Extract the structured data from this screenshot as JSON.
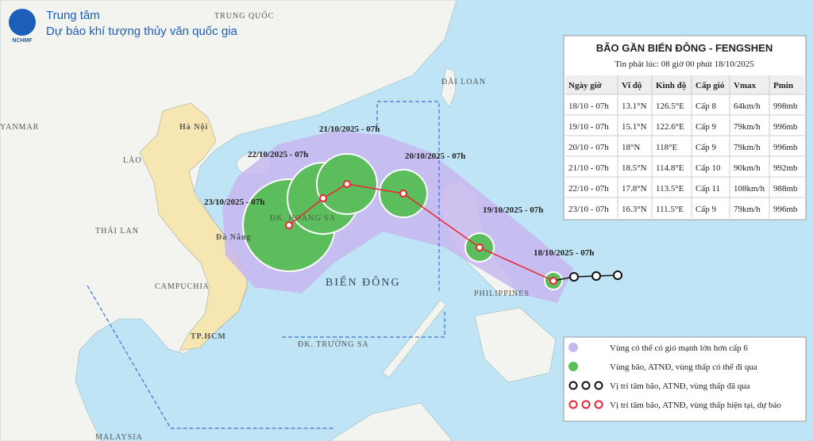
{
  "header": {
    "logo": "NCHMF",
    "line1": "Trung tâm",
    "line2": "Dự báo khí tượng thủy văn quốc gia"
  },
  "map_labels": {
    "china": "TRUNG QUỐC",
    "myanmar": "YANMAR",
    "taiwan": "ĐÀI LOAN",
    "hanoi": "Hà Nội",
    "laos": "LÀO",
    "thailand": "THÁI LAN",
    "danang": "Đà Nẵng",
    "cambodia": "CAMPUCHIA",
    "hcm": "TP.HCM",
    "sea": "BIỂN ĐÔNG",
    "paracel": "ĐK. HOÀNG SA",
    "spratly": "ĐK. TRƯỜNG SA",
    "philippines": "PHILIPPINES",
    "malaysia": "MALAYSIA"
  },
  "track_labels": [
    "18/10/2025 - 07h",
    "19/10/2025 - 07h",
    "20/10/2025 - 07h",
    "21/10/2025 - 07h",
    "22/10/2025 - 07h",
    "23/10/2025 - 07h"
  ],
  "table": {
    "title": "BÃO GẦN BIỂN ĐÔNG - FENGSHEN",
    "subtitle": "Tin phát lúc: 08 giờ 00 phút 18/10/2025",
    "columns": [
      "Ngày giờ",
      "Vĩ độ",
      "Kinh độ",
      "Cấp gió",
      "Vmax",
      "Pmin"
    ],
    "rows": [
      [
        "18/10 - 07h",
        "13.1°N",
        "126.5°E",
        "Cấp 8",
        "64km/h",
        "998mb"
      ],
      [
        "19/10 - 07h",
        "15.1°N",
        "122.6°E",
        "Cấp 9",
        "79km/h",
        "996mb"
      ],
      [
        "20/10 - 07h",
        "18°N",
        "118°E",
        "Cấp 9",
        "79km/h",
        "996mb"
      ],
      [
        "21/10 - 07h",
        "18.5°N",
        "114.8°E",
        "Cấp 10",
        "90km/h",
        "992mb"
      ],
      [
        "22/10 - 07h",
        "17.8°N",
        "113.5°E",
        "Cấp 11",
        "108km/h",
        "988mb"
      ],
      [
        "23/10 - 07h",
        "16.3°N",
        "111.5°E",
        "Cấp 9",
        "79km/h",
        "996mb"
      ]
    ]
  },
  "legend": [
    "Vùng có thể có gió mạnh lớn hơn cấp 6",
    "Vùng bão, ATNĐ, vùng thấp có thể đi qua",
    "Vị trí tâm bão, ATNĐ, vùng thấp đã qua",
    "Vị trí tâm bão, ATNĐ, vùng thấp hiện tại, dự báo"
  ]
}
